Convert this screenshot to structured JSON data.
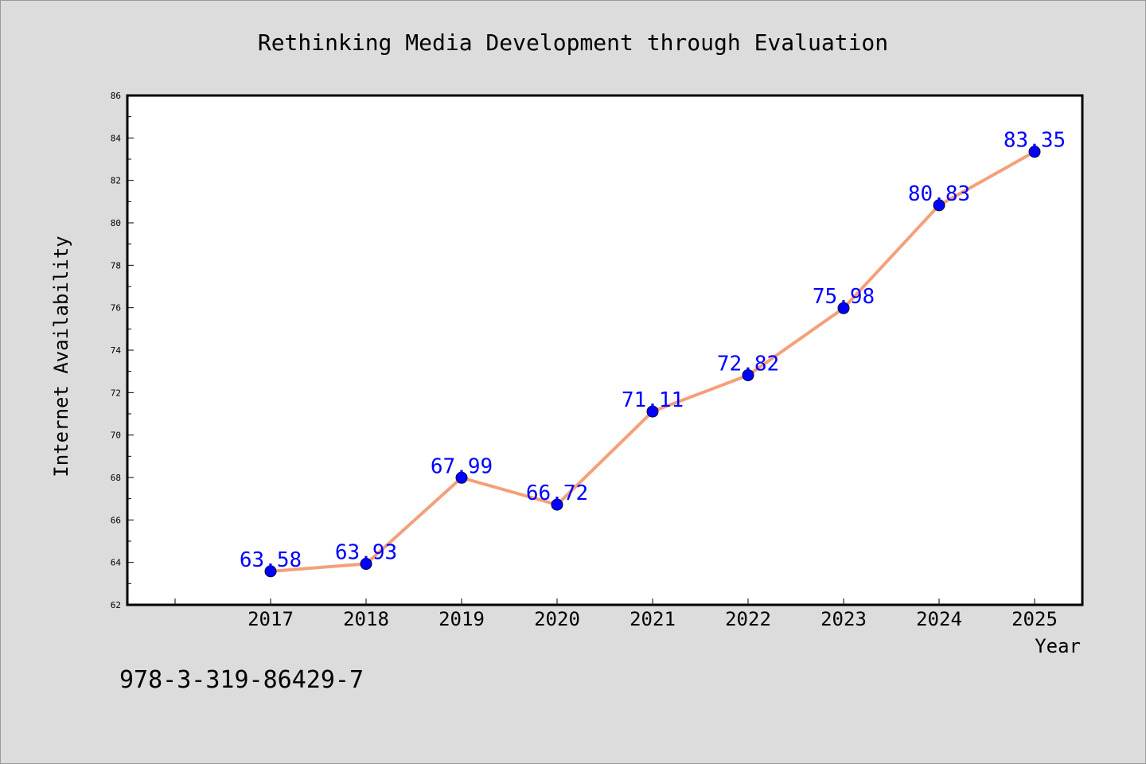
{
  "chart_data": {
    "type": "line",
    "title": "Rethinking Media Development through Evaluation",
    "xlabel": "Year",
    "ylabel": "Internet Availability",
    "categories": [
      "2017",
      "2018",
      "2019",
      "2020",
      "2021",
      "2022",
      "2023",
      "2024",
      "2025"
    ],
    "series": [
      {
        "values": [
          63.58,
          63.93,
          67.99,
          66.72,
          71.11,
          72.82,
          75.98,
          80.83,
          83.35
        ],
        "labels": [
          "63.58",
          "63.93",
          "67.99",
          "66.72",
          "71.11",
          "72.82",
          "75.98",
          "80.83",
          "83.35"
        ],
        "line_color": "#f4a07a",
        "marker_color": "#0000ff",
        "label_color": "#0000ff"
      }
    ],
    "ylim": [
      62,
      86
    ],
    "yticks": [
      "62",
      "64",
      "66",
      "68",
      "70",
      "72",
      "74",
      "76",
      "78",
      "80",
      "82",
      "84",
      "86"
    ],
    "grid": false,
    "legend": "none"
  },
  "footer_text": "978-3-319-86429-7",
  "colors": {
    "background": "#dcdcdc",
    "plot_background": "#ffffff",
    "axis": "#000000"
  }
}
